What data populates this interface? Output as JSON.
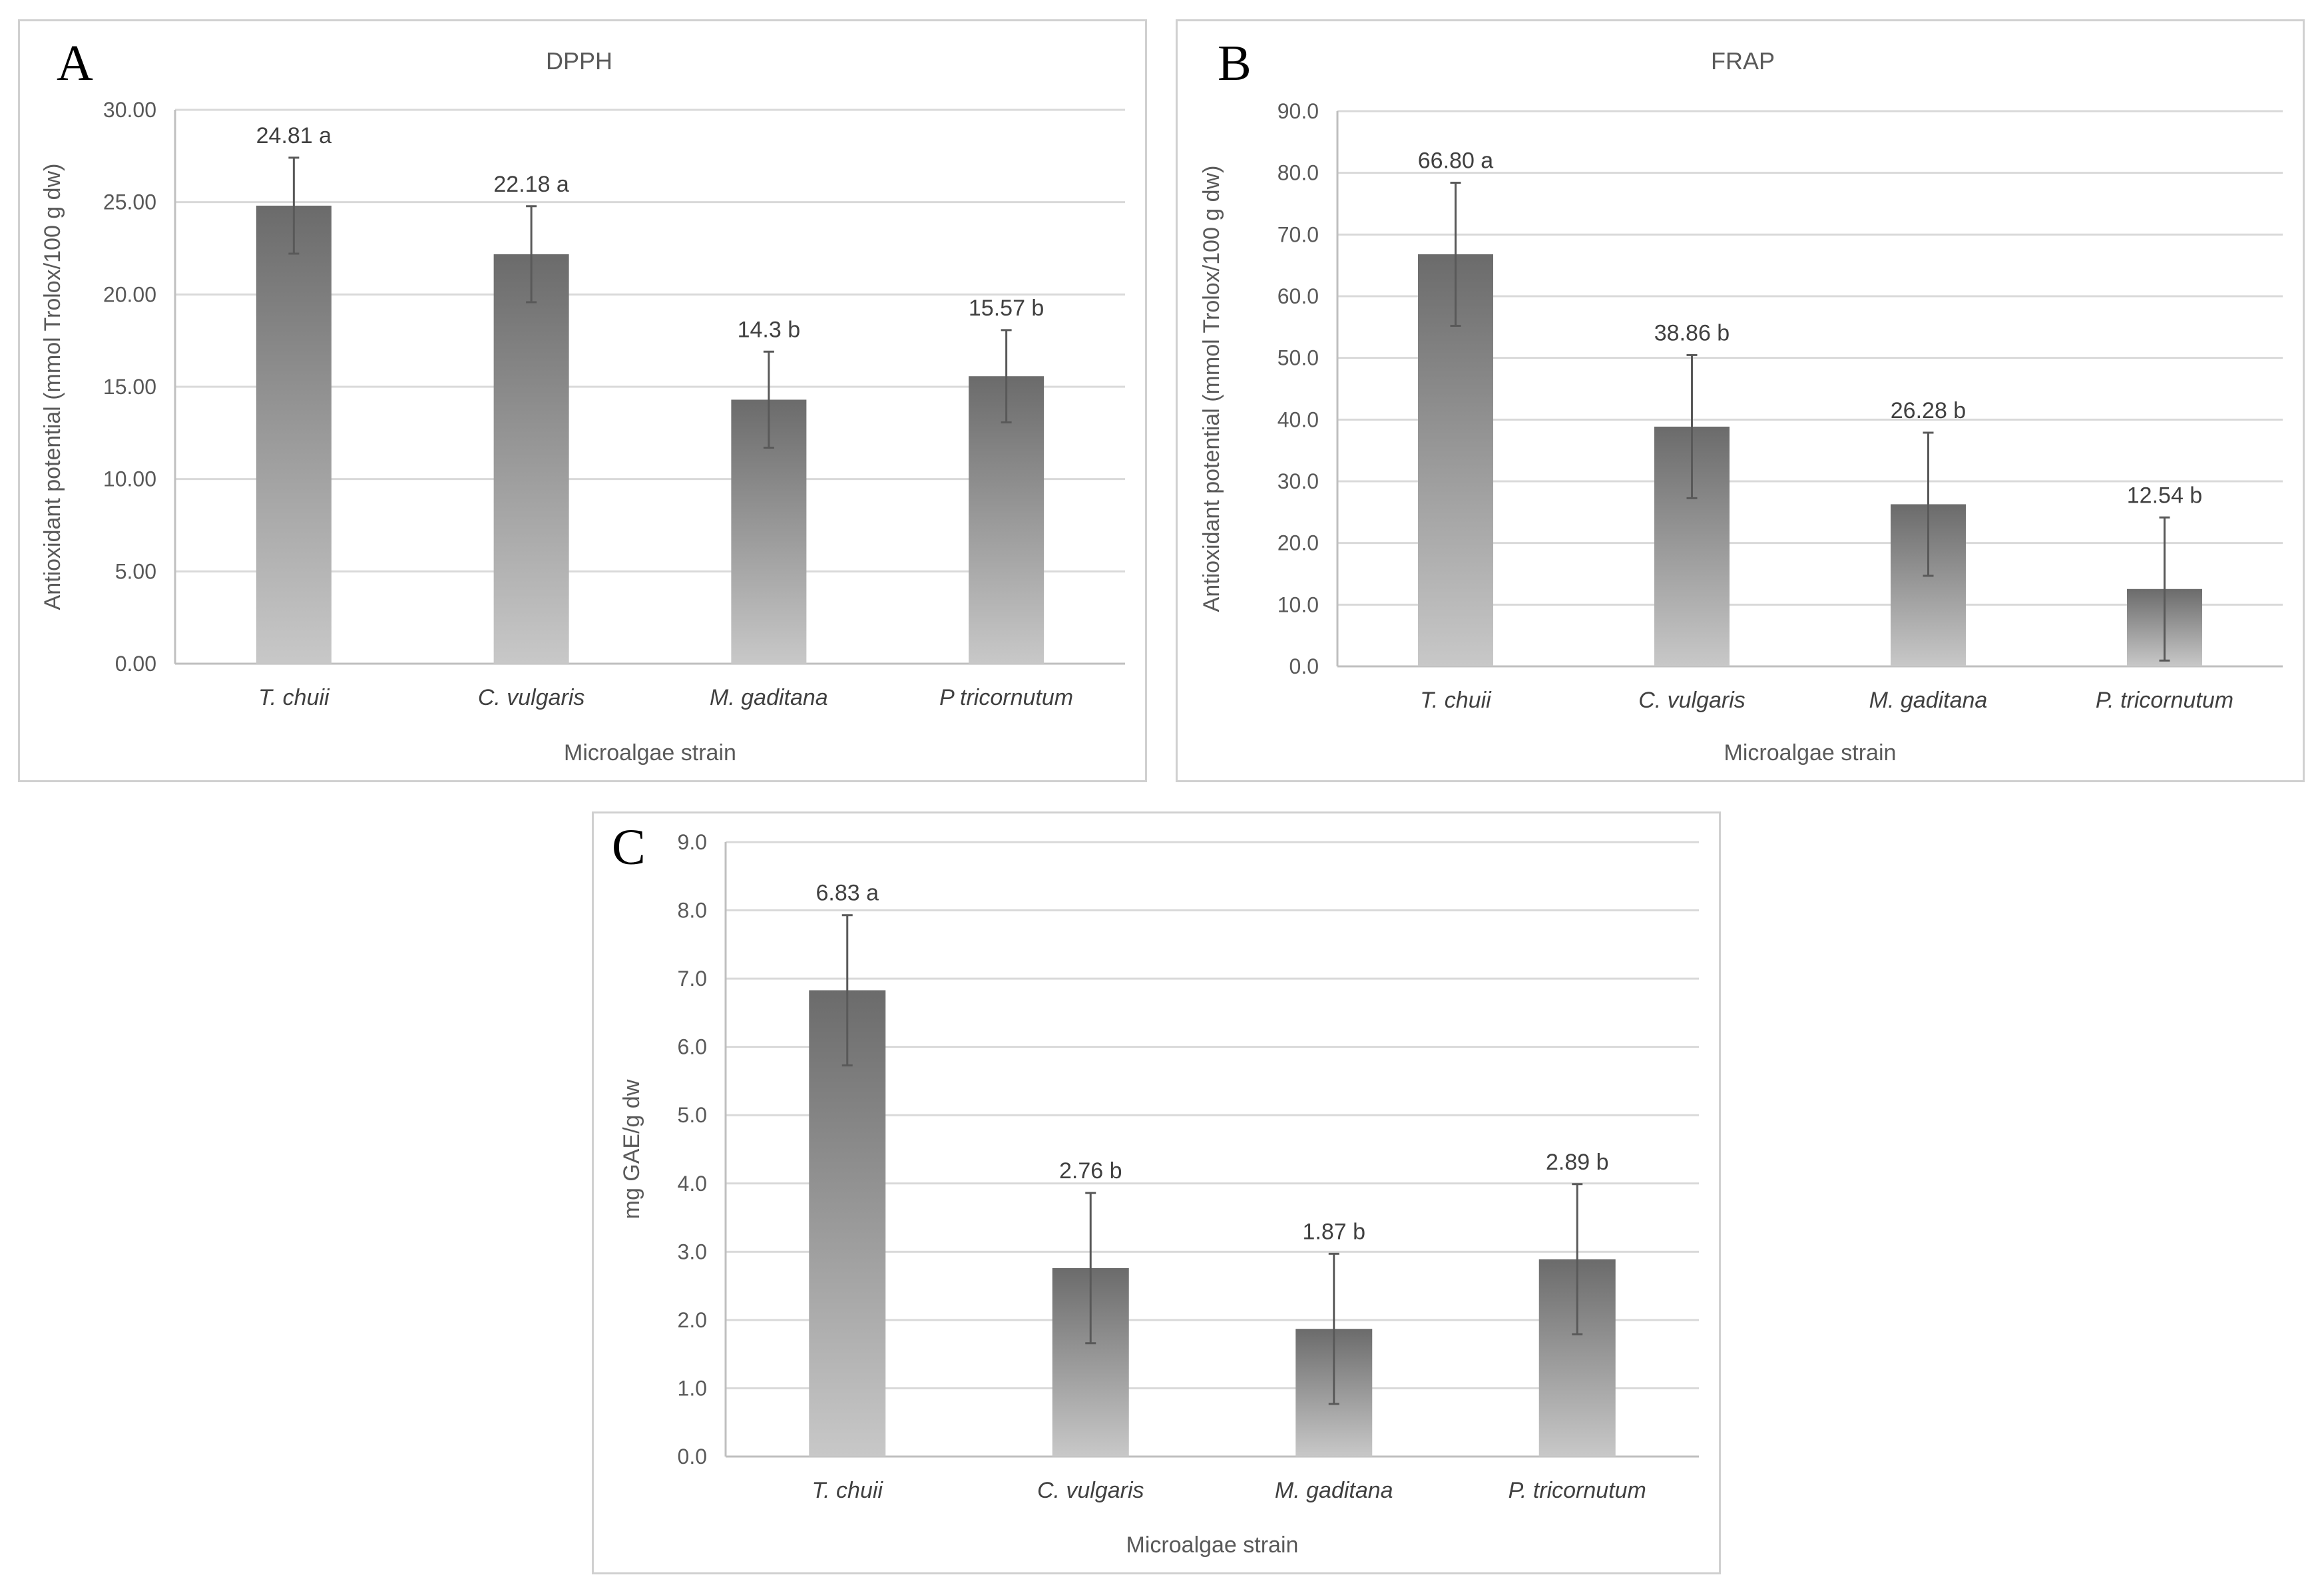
{
  "chart_data": [
    {
      "id": "a",
      "panel_letter": "A",
      "type": "bar",
      "title": "DPPH",
      "xlabel": "Microalgae strain",
      "ylabel": "Antioxidant potential (mmol Trolox/100 g dw)",
      "categories": [
        "T. chuii",
        "C. vulgaris",
        "M. gaditana",
        "P tricornutum"
      ],
      "values": [
        24.81,
        22.18,
        14.3,
        15.57
      ],
      "errors": [
        2.6,
        2.6,
        2.6,
        2.5
      ],
      "data_labels": [
        "24.81 a",
        "22.18 a",
        "14.3 b",
        "15.57 b"
      ],
      "ylim": [
        0,
        30
      ],
      "yticks": [
        "0.00",
        "5.00",
        "10.00",
        "15.00",
        "20.00",
        "25.00",
        "30.00"
      ],
      "grid": true,
      "bar_color": "#6b6b6b"
    },
    {
      "id": "b",
      "panel_letter": "B",
      "type": "bar",
      "title": "FRAP",
      "xlabel": "Microalgae strain",
      "ylabel": "Antioxidant potential (mmol Trolox/100 g dw)",
      "categories": [
        "T. chuii",
        "C. vulgaris",
        "M. gaditana",
        "P. tricornutum"
      ],
      "values": [
        66.8,
        38.86,
        26.28,
        12.54
      ],
      "errors": [
        11.6,
        11.6,
        11.6,
        11.6
      ],
      "data_labels": [
        "66.80 a",
        "38.86 b",
        "26.28 b",
        "12.54 b"
      ],
      "ylim": [
        0,
        90
      ],
      "yticks": [
        "0.0",
        "10.0",
        "20.0",
        "30.0",
        "40.0",
        "50.0",
        "60.0",
        "70.0",
        "80.0",
        "90.0"
      ],
      "grid": true,
      "bar_color": "#6b6b6b"
    },
    {
      "id": "c",
      "panel_letter": "C",
      "type": "bar",
      "title": "",
      "xlabel": "Microalgae strain",
      "ylabel": "mg GAE/g dw",
      "categories": [
        "T. chuii",
        "C. vulgaris",
        "M. gaditana",
        "P. tricornutum"
      ],
      "values": [
        6.83,
        2.76,
        1.87,
        2.89
      ],
      "errors": [
        1.1,
        1.1,
        1.1,
        1.1
      ],
      "data_labels": [
        "6.83 a",
        "2.76 b",
        "1.87 b",
        "2.89 b"
      ],
      "ylim": [
        0,
        9
      ],
      "yticks": [
        "0.0",
        "1.0",
        "2.0",
        "3.0",
        "4.0",
        "5.0",
        "6.0",
        "7.0",
        "8.0",
        "9.0"
      ],
      "grid": true,
      "bar_color": "#6b6b6b"
    }
  ]
}
